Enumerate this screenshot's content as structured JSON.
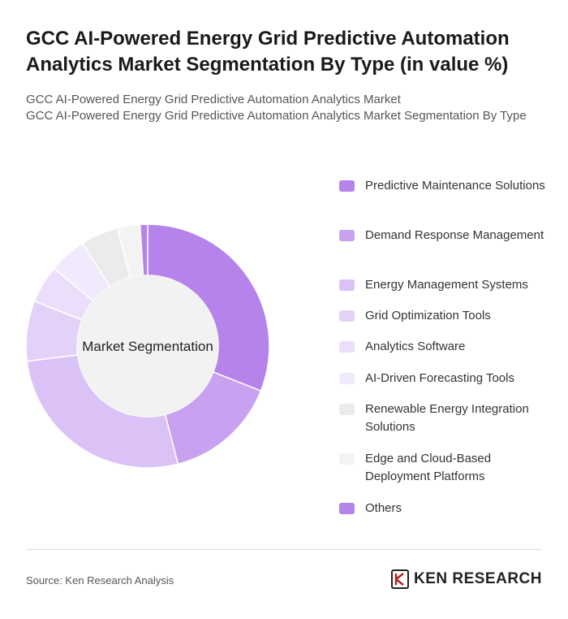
{
  "header": {
    "title": "GCC AI-Powered Energy Grid Predictive Automation Analytics Market Segmentation By Type (in value %)",
    "subtitle_line1": "GCC AI-Powered Energy Grid Predictive Automation Analytics Market",
    "subtitle_line2": "GCC AI-Powered Energy Grid Predictive Automation Analytics Market Segmentation By Type"
  },
  "chart_data": {
    "type": "pie",
    "center_label": "Market Segmentation",
    "legend_position": "right",
    "categories": [
      "Predictive Maintenance Solutions",
      "Demand Response Management",
      "Energy Management Systems",
      "Grid Optimization Tools",
      "Analytics Software",
      "AI-Driven Forecasting Tools",
      "Renewable Energy Integration Solutions",
      "Edge and Cloud-Based Deployment Platforms",
      "Others"
    ],
    "values": [
      31,
      15,
      27,
      8,
      5,
      5,
      5,
      3,
      1
    ],
    "colors": [
      "#b583ea",
      "#c8a1f0",
      "#dbc2f6",
      "#e3d1f8",
      "#ebdefa",
      "#f1e9fc",
      "#ebebeb",
      "#f3f3f3",
      "#b583ea"
    ]
  },
  "footer": {
    "source": "Source: Ken Research Analysis",
    "logo_text": "KEN RESEARCH"
  }
}
